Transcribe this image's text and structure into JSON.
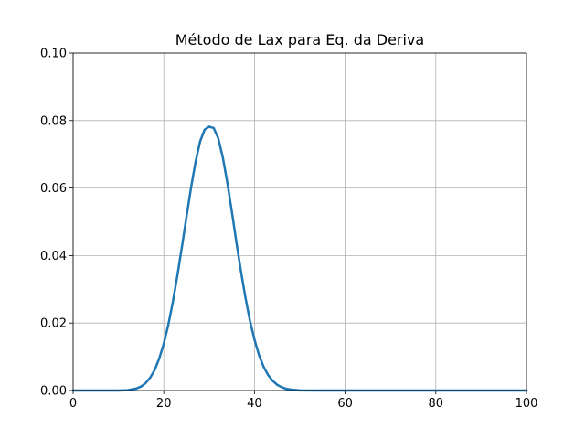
{
  "chart_data": {
    "type": "line",
    "title": "Método de Lax para Eq. da Deriva",
    "xlabel": "",
    "ylabel": "",
    "xlim": [
      0,
      100
    ],
    "ylim": [
      0,
      0.1
    ],
    "grid": true,
    "x_ticks": [
      0,
      20,
      40,
      60,
      80,
      100
    ],
    "x_tick_labels": [
      "0",
      "20",
      "40",
      "60",
      "80",
      "100"
    ],
    "y_ticks": [
      0,
      0.02,
      0.04,
      0.06,
      0.08,
      0.1
    ],
    "y_tick_labels": [
      "0.00",
      "0.02",
      "0.04",
      "0.06",
      "0.08",
      "0.10"
    ],
    "series": [
      {
        "color": "#1f77b4",
        "x": [
          0,
          5,
          10,
          12,
          14,
          15,
          16,
          17,
          18,
          19,
          20,
          21,
          22,
          23,
          24,
          25,
          26,
          27,
          28,
          29,
          30,
          31,
          32,
          33,
          34,
          35,
          36,
          37,
          38,
          39,
          40,
          41,
          42,
          43,
          44,
          45,
          46,
          47,
          48,
          50,
          55,
          60,
          70,
          80,
          90,
          100
        ],
        "y": [
          0,
          0,
          1e-05,
          0.0001,
          0.0006,
          0.0012,
          0.0022,
          0.0038,
          0.0061,
          0.0095,
          0.0139,
          0.0195,
          0.0263,
          0.0341,
          0.0426,
          0.0514,
          0.06,
          0.0677,
          0.0738,
          0.0773,
          0.0782,
          0.0778,
          0.0748,
          0.0692,
          0.0617,
          0.0531,
          0.0441,
          0.0355,
          0.0276,
          0.0207,
          0.0151,
          0.0105,
          0.0071,
          0.0046,
          0.0029,
          0.0017,
          0.001,
          0.0005,
          0.0003,
          5e-05,
          0,
          0,
          0,
          0,
          0,
          0
        ]
      }
    ]
  }
}
